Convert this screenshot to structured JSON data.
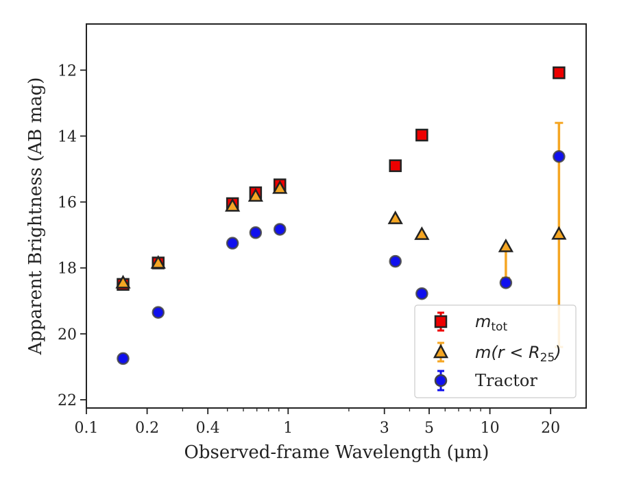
{
  "chart_data": {
    "type": "scatter",
    "xlabel": "Observed-frame Wavelength (μm)",
    "ylabel": "Apparent Brightness (AB mag)",
    "x_scale": "log",
    "xlim": [
      0.1,
      30
    ],
    "ylim": [
      22.25,
      10.6
    ],
    "y_inverted": true,
    "x_ticks": [
      {
        "value": 0.1,
        "label": "0.1"
      },
      {
        "value": 0.2,
        "label": "0.2"
      },
      {
        "value": 0.4,
        "label": "0.4"
      },
      {
        "value": 1,
        "label": "1"
      },
      {
        "value": 3,
        "label": "3"
      },
      {
        "value": 5,
        "label": "5"
      },
      {
        "value": 10,
        "label": "10"
      },
      {
        "value": 20,
        "label": "20"
      }
    ],
    "y_ticks": [
      {
        "value": 12,
        "label": "12"
      },
      {
        "value": 14,
        "label": "14"
      },
      {
        "value": 16,
        "label": "16"
      },
      {
        "value": 18,
        "label": "18"
      },
      {
        "value": 20,
        "label": "20"
      },
      {
        "value": 22,
        "label": "22"
      }
    ],
    "legend_position": "lower-right",
    "series": [
      {
        "key": "mtot",
        "marker": "square",
        "color": "#ee0000",
        "edge_color": "#222222",
        "points": [
          {
            "x": 0.152,
            "y": 18.5
          },
          {
            "x": 0.227,
            "y": 17.85
          },
          {
            "x": 0.53,
            "y": 16.05
          },
          {
            "x": 0.69,
            "y": 15.72
          },
          {
            "x": 0.91,
            "y": 15.48
          },
          {
            "x": 3.4,
            "y": 14.9
          },
          {
            "x": 4.6,
            "y": 13.97
          },
          {
            "x": 22,
            "y": 12.08
          }
        ]
      },
      {
        "key": "mr25",
        "marker": "triangle",
        "color": "#f5a623",
        "edge_color": "#222222",
        "points": [
          {
            "x": 0.152,
            "y": 18.45
          },
          {
            "x": 0.227,
            "y": 17.85
          },
          {
            "x": 0.53,
            "y": 16.12
          },
          {
            "x": 0.69,
            "y": 15.82
          },
          {
            "x": 0.91,
            "y": 15.58
          },
          {
            "x": 3.4,
            "y": 16.5
          },
          {
            "x": 4.6,
            "y": 16.98
          },
          {
            "x": 12,
            "y": 17.35,
            "err_lo": 17.35,
            "err_hi": 18.3
          },
          {
            "x": 22,
            "y": 16.97,
            "err_lo": 13.6,
            "err_hi": 20.4
          }
        ]
      },
      {
        "key": "tractor",
        "marker": "circle",
        "color": "#1010ee",
        "edge_color": "#444444",
        "points": [
          {
            "x": 0.152,
            "y": 20.75
          },
          {
            "x": 0.227,
            "y": 19.35
          },
          {
            "x": 0.53,
            "y": 17.25
          },
          {
            "x": 0.69,
            "y": 16.93
          },
          {
            "x": 0.91,
            "y": 16.83
          },
          {
            "x": 3.4,
            "y": 17.8
          },
          {
            "x": 4.6,
            "y": 18.78
          },
          {
            "x": 12,
            "y": 18.45
          },
          {
            "x": 22,
            "y": 14.62
          }
        ]
      }
    ],
    "legend": {
      "mtot": {
        "base": "m",
        "sub": "tot"
      },
      "mr25": {
        "pre": "m(r < R",
        "sub": "25",
        "post": ")"
      },
      "tractor": {
        "text": "Tractor"
      }
    }
  }
}
